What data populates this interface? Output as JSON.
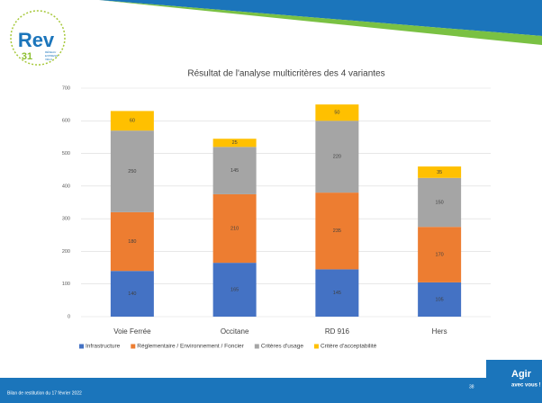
{
  "chart_data": {
    "type": "stacked_bar",
    "title": "Résultat de l'analyse multicritères des 4 variantes",
    "categories": [
      "Voie Ferrée",
      "Occitane",
      "RD 916",
      "Hers"
    ],
    "series": [
      {
        "name": "Infrastructure",
        "color": "#4472c4",
        "values": [
          140,
          165,
          145,
          105
        ]
      },
      {
        "name": "Réglementaire / Environnement / Foncier",
        "color": "#ed7d31",
        "values": [
          180,
          210,
          235,
          170
        ]
      },
      {
        "name": "Critères d'usage",
        "color": "#a5a5a5",
        "values": [
          250,
          145,
          220,
          150
        ]
      },
      {
        "name": "Critère d'acceptabilité",
        "color": "#ffc000",
        "values": [
          60,
          25,
          50,
          35
        ]
      }
    ],
    "ylim": [
      0,
      700
    ],
    "yticks": [
      0,
      100,
      200,
      300,
      400,
      500,
      600,
      700
    ],
    "grid": true,
    "legend": "bottom"
  },
  "slide": {
    "logo_main": "Rev",
    "logo_number": "31",
    "logo_line1": "RÉSEAU",
    "logo_line2": "EXPRESS",
    "logo_line3": "VÉLO",
    "footer": "Bilan de restitution du 17 février 2022",
    "page_number": "38",
    "brand_line1": "Agir",
    "brand_line2": "avec vous !"
  }
}
